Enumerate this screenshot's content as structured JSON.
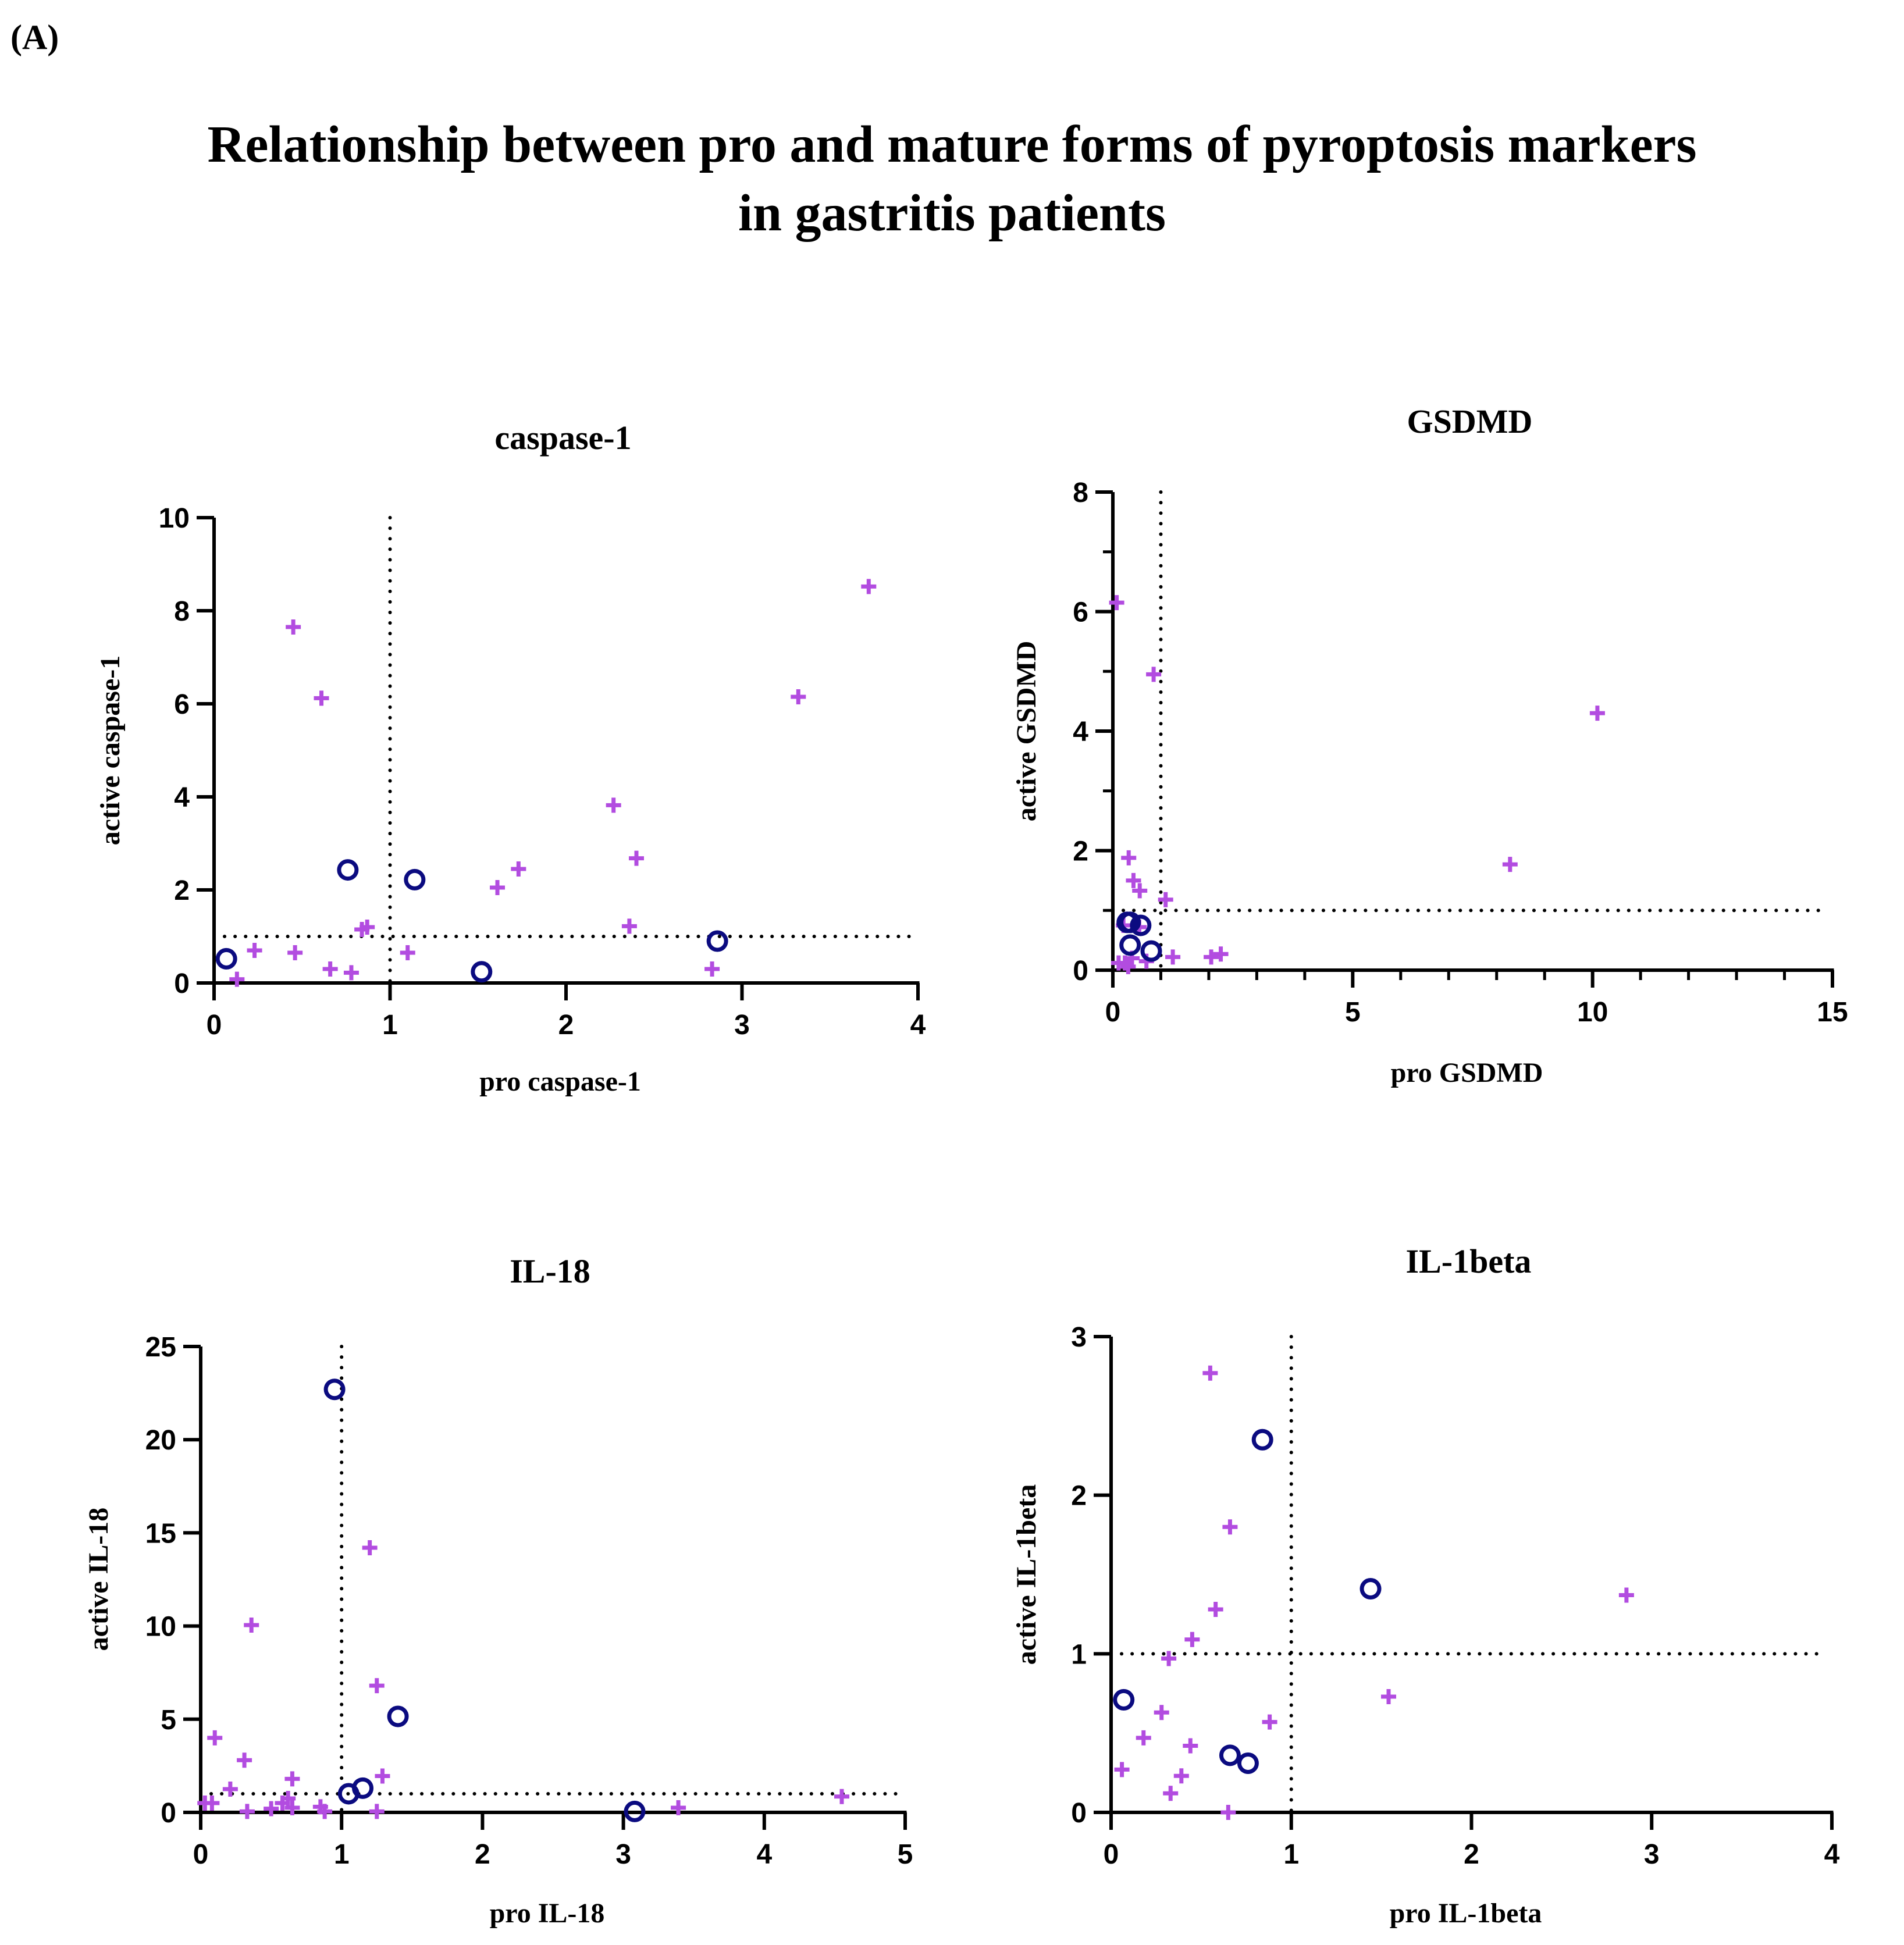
{
  "panel_label": "(A)",
  "title_lines": [
    "Relationship between pro and mature forms of pyroptosis markers",
    "in  gastritis patients"
  ],
  "colors": {
    "cross": "#b24ce0",
    "circle": "#0b0b80",
    "axis": "#000000"
  },
  "chart_data": [
    {
      "type": "scatter",
      "title": "caspase-1",
      "xlabel": "pro caspase-1",
      "ylabel": "active caspase-1",
      "xlim": [
        0,
        4
      ],
      "ylim": [
        0,
        10
      ],
      "xticks": [
        0,
        1,
        2,
        3,
        4
      ],
      "yticks": [
        0,
        2,
        4,
        6,
        8,
        10
      ],
      "xminor": [],
      "yminor": [],
      "cutoff_x": 1,
      "cutoff_y": 1,
      "series": [
        {
          "name": "cross",
          "marker": "cross",
          "points": [
            [
              0.45,
              7.65
            ],
            [
              0.61,
              6.12
            ],
            [
              0.23,
              0.7
            ],
            [
              0.46,
              0.65
            ],
            [
              0.13,
              0.08
            ],
            [
              0.66,
              0.3
            ],
            [
              0.78,
              0.22
            ],
            [
              0.84,
              1.15
            ],
            [
              0.87,
              1.2
            ],
            [
              1.1,
              0.65
            ],
            [
              1.61,
              2.05
            ],
            [
              1.73,
              2.45
            ],
            [
              2.27,
              3.82
            ],
            [
              2.4,
              2.68
            ],
            [
              2.36,
              1.22
            ],
            [
              2.83,
              0.3
            ],
            [
              3.32,
              6.15
            ],
            [
              3.72,
              8.52
            ]
          ]
        },
        {
          "name": "circle",
          "marker": "circle",
          "points": [
            [
              0.07,
              0.52
            ],
            [
              0.76,
              2.43
            ],
            [
              1.14,
              2.22
            ],
            [
              1.52,
              0.24
            ],
            [
              2.86,
              0.9
            ]
          ]
        }
      ]
    },
    {
      "type": "scatter",
      "title": "GSDMD",
      "xlabel": "pro GSDMD",
      "ylabel": "active GSDMD",
      "xlim": [
        0,
        15
      ],
      "ylim": [
        0,
        8
      ],
      "xticks": [
        0,
        5,
        10,
        15
      ],
      "yticks": [
        0,
        2,
        4,
        6,
        8
      ],
      "xminor": [
        1,
        2,
        3,
        4,
        6,
        7,
        8,
        9,
        11,
        12,
        13,
        14
      ],
      "yminor": [
        1,
        3,
        5,
        7
      ],
      "cutoff_x": 1,
      "cutoff_y": 1,
      "series": [
        {
          "name": "cross",
          "marker": "cross",
          "points": [
            [
              0.08,
              6.15
            ],
            [
              0.85,
              4.95
            ],
            [
              0.33,
              1.88
            ],
            [
              0.43,
              1.5
            ],
            [
              0.56,
              1.33
            ],
            [
              1.1,
              1.18
            ],
            [
              0.22,
              0.75
            ],
            [
              0.55,
              0.72
            ],
            [
              0.12,
              0.12
            ],
            [
              0.25,
              0.12
            ],
            [
              0.32,
              0.06
            ],
            [
              0.4,
              0.2
            ],
            [
              0.7,
              0.15
            ],
            [
              1.25,
              0.22
            ],
            [
              2.05,
              0.22
            ],
            [
              2.25,
              0.27
            ],
            [
              8.28,
              1.77
            ],
            [
              10.1,
              4.3
            ]
          ]
        },
        {
          "name": "circle",
          "marker": "circle",
          "points": [
            [
              0.3,
              0.8
            ],
            [
              0.36,
              0.8
            ],
            [
              0.58,
              0.75
            ],
            [
              0.36,
              0.42
            ],
            [
              0.8,
              0.32
            ]
          ]
        }
      ]
    },
    {
      "type": "scatter",
      "title": "IL-18",
      "xlabel": "pro IL-18",
      "ylabel": "active IL-18",
      "xlim": [
        0,
        5
      ],
      "ylim": [
        0,
        25
      ],
      "xticks": [
        0,
        1,
        2,
        3,
        4,
        5
      ],
      "yticks": [
        0,
        5,
        10,
        15,
        20,
        25
      ],
      "xminor": [],
      "yminor": [],
      "cutoff_x": 1,
      "cutoff_y": 1,
      "series": [
        {
          "name": "cross",
          "marker": "cross",
          "points": [
            [
              0.1,
              4.0
            ],
            [
              0.36,
              10.05
            ],
            [
              0.31,
              2.8
            ],
            [
              0.21,
              1.25
            ],
            [
              0.03,
              0.5
            ],
            [
              0.08,
              0.5
            ],
            [
              0.33,
              0.05
            ],
            [
              0.5,
              0.2
            ],
            [
              0.58,
              0.5
            ],
            [
              0.62,
              0.75
            ],
            [
              0.65,
              1.8
            ],
            [
              0.65,
              0.25
            ],
            [
              0.85,
              0.3
            ],
            [
              0.88,
              0.05
            ],
            [
              1.2,
              14.2
            ],
            [
              1.25,
              6.8
            ],
            [
              1.29,
              1.95
            ],
            [
              1.25,
              0.05
            ],
            [
              3.39,
              0.25
            ],
            [
              4.55,
              0.85
            ]
          ]
        },
        {
          "name": "circle",
          "marker": "circle",
          "points": [
            [
              0.95,
              22.7
            ],
            [
              1.05,
              1.0
            ],
            [
              1.15,
              1.3
            ],
            [
              1.4,
              5.15
            ],
            [
              3.08,
              0.05
            ]
          ]
        }
      ]
    },
    {
      "type": "scatter",
      "title": "IL-1beta",
      "xlabel": "pro IL-1beta",
      "ylabel": "active IL-1beta",
      "xlim": [
        0,
        4
      ],
      "ylim": [
        0,
        3
      ],
      "xticks": [
        0,
        1,
        2,
        3,
        4
      ],
      "yticks": [
        0,
        1,
        2,
        3
      ],
      "xminor": [],
      "yminor": [],
      "cutoff_x": 1,
      "cutoff_y": 1,
      "series": [
        {
          "name": "cross",
          "marker": "cross",
          "points": [
            [
              0.55,
              2.77
            ],
            [
              0.66,
              1.8
            ],
            [
              0.58,
              1.28
            ],
            [
              0.45,
              1.09
            ],
            [
              0.32,
              0.97
            ],
            [
              0.28,
              0.63
            ],
            [
              0.88,
              0.57
            ],
            [
              0.18,
              0.47
            ],
            [
              0.44,
              0.42
            ],
            [
              0.06,
              0.27
            ],
            [
              0.39,
              0.23
            ],
            [
              0.33,
              0.12
            ],
            [
              0.65,
              0.0
            ],
            [
              1.54,
              0.73
            ],
            [
              2.86,
              1.37
            ]
          ]
        },
        {
          "name": "circle",
          "marker": "circle",
          "points": [
            [
              0.07,
              0.71
            ],
            [
              0.84,
              2.35
            ],
            [
              0.66,
              0.36
            ],
            [
              0.76,
              0.31
            ],
            [
              1.44,
              1.41
            ]
          ]
        }
      ]
    }
  ]
}
